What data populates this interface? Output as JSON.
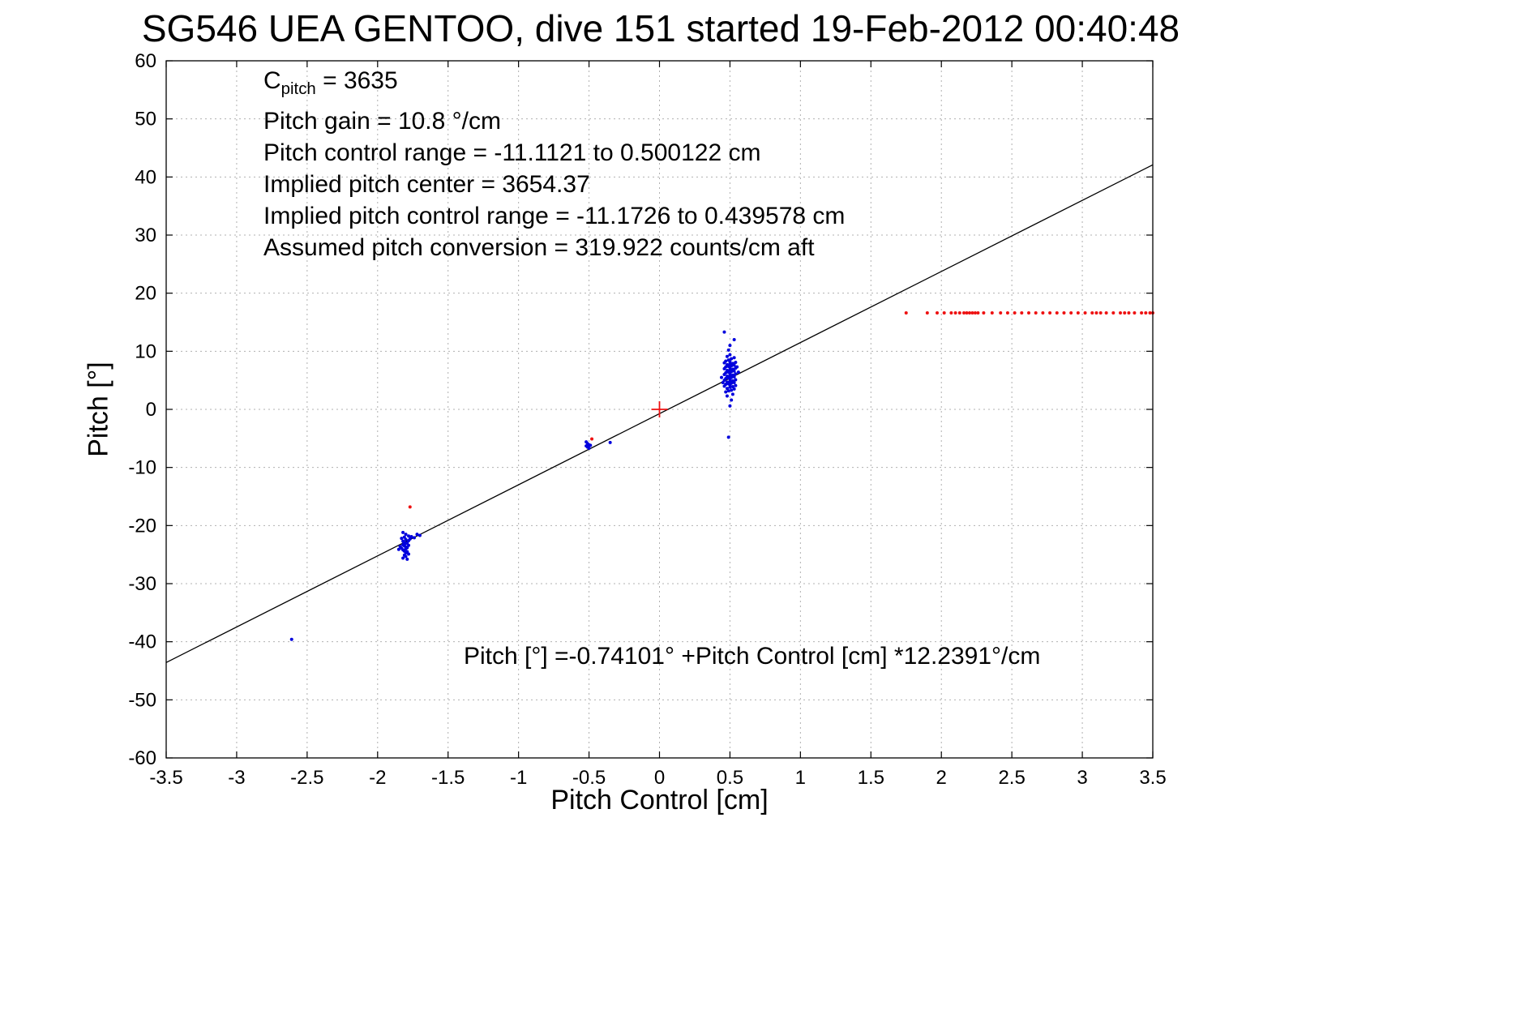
{
  "title": "SG546 UEA GENTOO, dive 151 started 19-Feb-2012 00:40:48",
  "annotation": {
    "cpitch_base": "C",
    "cpitch_sub": "pitch",
    "cpitch_rest": " = 3635",
    "lines": [
      "Pitch gain = 10.8 °/cm",
      "Pitch control range = -11.1121 to 0.500122 cm",
      "Implied pitch center = 3654.37",
      "Implied pitch control range = -11.1726 to 0.439578 cm",
      "Assumed pitch conversion = 319.922 counts/cm aft"
    ]
  },
  "equation": "Pitch [°] =-0.74101° +Pitch Control [cm] *12.2391°/cm",
  "chart_data": {
    "type": "scatter",
    "title": "SG546 UEA GENTOO, dive 151 started 19-Feb-2012 00:40:48",
    "xlabel": "Pitch Control [cm]",
    "ylabel": "Pitch [°]",
    "xlim": [
      -3.5,
      3.5
    ],
    "ylim": [
      -60,
      60
    ],
    "xtick_step": 0.5,
    "ytick_step": 10,
    "grid": true,
    "legend": "none",
    "fit_line": {
      "intercept": -0.74101,
      "slope": 12.2391,
      "color": "#000000"
    },
    "series": [
      {
        "name": "observed-pitch-blue",
        "color": "#0000dd",
        "marker": "dot",
        "points": [
          [
            -2.61,
            -39.6
          ],
          [
            -1.82,
            -21.2
          ],
          [
            -1.8,
            -21.5
          ],
          [
            -1.78,
            -21.8
          ],
          [
            -1.81,
            -22.0
          ],
          [
            -1.83,
            -22.2
          ],
          [
            -1.8,
            -22.4
          ],
          [
            -1.78,
            -22.6
          ],
          [
            -1.82,
            -22.7
          ],
          [
            -1.81,
            -22.9
          ],
          [
            -1.79,
            -23.0
          ],
          [
            -1.8,
            -23.1
          ],
          [
            -1.82,
            -23.3
          ],
          [
            -1.78,
            -23.4
          ],
          [
            -1.81,
            -23.5
          ],
          [
            -1.8,
            -23.7
          ],
          [
            -1.79,
            -23.8
          ],
          [
            -1.83,
            -23.9
          ],
          [
            -1.8,
            -24.0
          ],
          [
            -1.82,
            -24.2
          ],
          [
            -1.81,
            -24.4
          ],
          [
            -1.79,
            -24.5
          ],
          [
            -1.8,
            -24.7
          ],
          [
            -1.78,
            -24.9
          ],
          [
            -1.81,
            -25.1
          ],
          [
            -1.8,
            -25.3
          ],
          [
            -1.82,
            -25.6
          ],
          [
            -1.84,
            -23.6
          ],
          [
            -1.77,
            -22.3
          ],
          [
            -1.76,
            -21.9
          ],
          [
            -1.85,
            -24.1
          ],
          [
            -1.74,
            -22.1
          ],
          [
            -1.72,
            -21.5
          ],
          [
            -1.7,
            -21.7
          ],
          [
            -1.79,
            -25.8
          ],
          [
            -0.52,
            -5.6
          ],
          [
            -0.51,
            -5.9
          ],
          [
            -0.5,
            -6.1
          ],
          [
            -0.52,
            -6.3
          ],
          [
            -0.51,
            -6.5
          ],
          [
            -0.5,
            -6.7
          ],
          [
            -0.49,
            -6.2
          ],
          [
            -0.35,
            -5.7
          ],
          [
            0.47,
            3.0
          ],
          [
            0.49,
            3.2
          ],
          [
            0.51,
            3.3
          ],
          [
            0.53,
            3.5
          ],
          [
            0.48,
            3.6
          ],
          [
            0.5,
            3.8
          ],
          [
            0.52,
            3.9
          ],
          [
            0.46,
            4.0
          ],
          [
            0.54,
            4.1
          ],
          [
            0.5,
            4.2
          ],
          [
            0.47,
            4.3
          ],
          [
            0.49,
            4.4
          ],
          [
            0.51,
            4.5
          ],
          [
            0.53,
            4.6
          ],
          [
            0.48,
            4.7
          ],
          [
            0.5,
            4.8
          ],
          [
            0.52,
            4.9
          ],
          [
            0.46,
            5.0
          ],
          [
            0.54,
            5.1
          ],
          [
            0.5,
            5.2
          ],
          [
            0.47,
            5.3
          ],
          [
            0.49,
            5.4
          ],
          [
            0.51,
            5.5
          ],
          [
            0.53,
            5.6
          ],
          [
            0.48,
            5.7
          ],
          [
            0.5,
            5.8
          ],
          [
            0.52,
            5.9
          ],
          [
            0.46,
            6.0
          ],
          [
            0.54,
            6.1
          ],
          [
            0.5,
            6.2
          ],
          [
            0.47,
            6.3
          ],
          [
            0.49,
            6.4
          ],
          [
            0.51,
            6.5
          ],
          [
            0.53,
            6.6
          ],
          [
            0.48,
            6.7
          ],
          [
            0.5,
            6.8
          ],
          [
            0.52,
            6.9
          ],
          [
            0.46,
            7.0
          ],
          [
            0.54,
            7.1
          ],
          [
            0.5,
            7.2
          ],
          [
            0.47,
            7.3
          ],
          [
            0.49,
            7.4
          ],
          [
            0.51,
            7.5
          ],
          [
            0.53,
            7.6
          ],
          [
            0.48,
            7.7
          ],
          [
            0.5,
            7.8
          ],
          [
            0.52,
            7.9
          ],
          [
            0.46,
            8.0
          ],
          [
            0.54,
            8.1
          ],
          [
            0.5,
            8.2
          ],
          [
            0.47,
            8.3
          ],
          [
            0.49,
            8.5
          ],
          [
            0.51,
            8.7
          ],
          [
            0.53,
            8.9
          ],
          [
            0.48,
            9.1
          ],
          [
            0.5,
            9.4
          ],
          [
            0.44,
            5.5
          ],
          [
            0.56,
            6.4
          ],
          [
            0.45,
            4.6
          ],
          [
            0.55,
            7.3
          ],
          [
            0.46,
            13.3
          ],
          [
            0.53,
            12.0
          ],
          [
            0.5,
            11.0
          ],
          [
            0.49,
            10.2
          ],
          [
            0.49,
            -4.8
          ],
          [
            0.5,
            0.6
          ],
          [
            0.51,
            1.6
          ],
          [
            0.48,
            2.3
          ],
          [
            0.52,
            2.6
          ]
        ]
      },
      {
        "name": "flagged-pitch-red",
        "color": "#ee1111",
        "marker": "dot",
        "points": [
          [
            -1.77,
            -16.8
          ],
          [
            -0.48,
            -5.1
          ],
          [
            1.75,
            16.6
          ],
          [
            1.9,
            16.6
          ],
          [
            1.97,
            16.6
          ],
          [
            2.02,
            16.6
          ],
          [
            2.07,
            16.6
          ],
          [
            2.1,
            16.6
          ],
          [
            2.13,
            16.6
          ],
          [
            2.16,
            16.6
          ],
          [
            2.18,
            16.6
          ],
          [
            2.2,
            16.6
          ],
          [
            2.22,
            16.6
          ],
          [
            2.24,
            16.6
          ],
          [
            2.26,
            16.6
          ],
          [
            2.3,
            16.6
          ],
          [
            2.36,
            16.6
          ],
          [
            2.42,
            16.6
          ],
          [
            2.47,
            16.6
          ],
          [
            2.52,
            16.6
          ],
          [
            2.57,
            16.6
          ],
          [
            2.62,
            16.6
          ],
          [
            2.67,
            16.6
          ],
          [
            2.72,
            16.6
          ],
          [
            2.77,
            16.6
          ],
          [
            2.82,
            16.6
          ],
          [
            2.87,
            16.6
          ],
          [
            2.92,
            16.6
          ],
          [
            2.97,
            16.6
          ],
          [
            3.02,
            16.6
          ],
          [
            3.07,
            16.6
          ],
          [
            3.1,
            16.6
          ],
          [
            3.13,
            16.6
          ],
          [
            3.17,
            16.6
          ],
          [
            3.22,
            16.6
          ],
          [
            3.27,
            16.6
          ],
          [
            3.3,
            16.6
          ],
          [
            3.33,
            16.6
          ],
          [
            3.37,
            16.6
          ],
          [
            3.42,
            16.6
          ],
          [
            3.45,
            16.6
          ],
          [
            3.48,
            16.6
          ],
          [
            3.5,
            16.6
          ]
        ]
      },
      {
        "name": "origin-marker-red-plus",
        "color": "#ee1111",
        "marker": "plus",
        "points": [
          [
            0,
            0
          ]
        ]
      }
    ]
  }
}
